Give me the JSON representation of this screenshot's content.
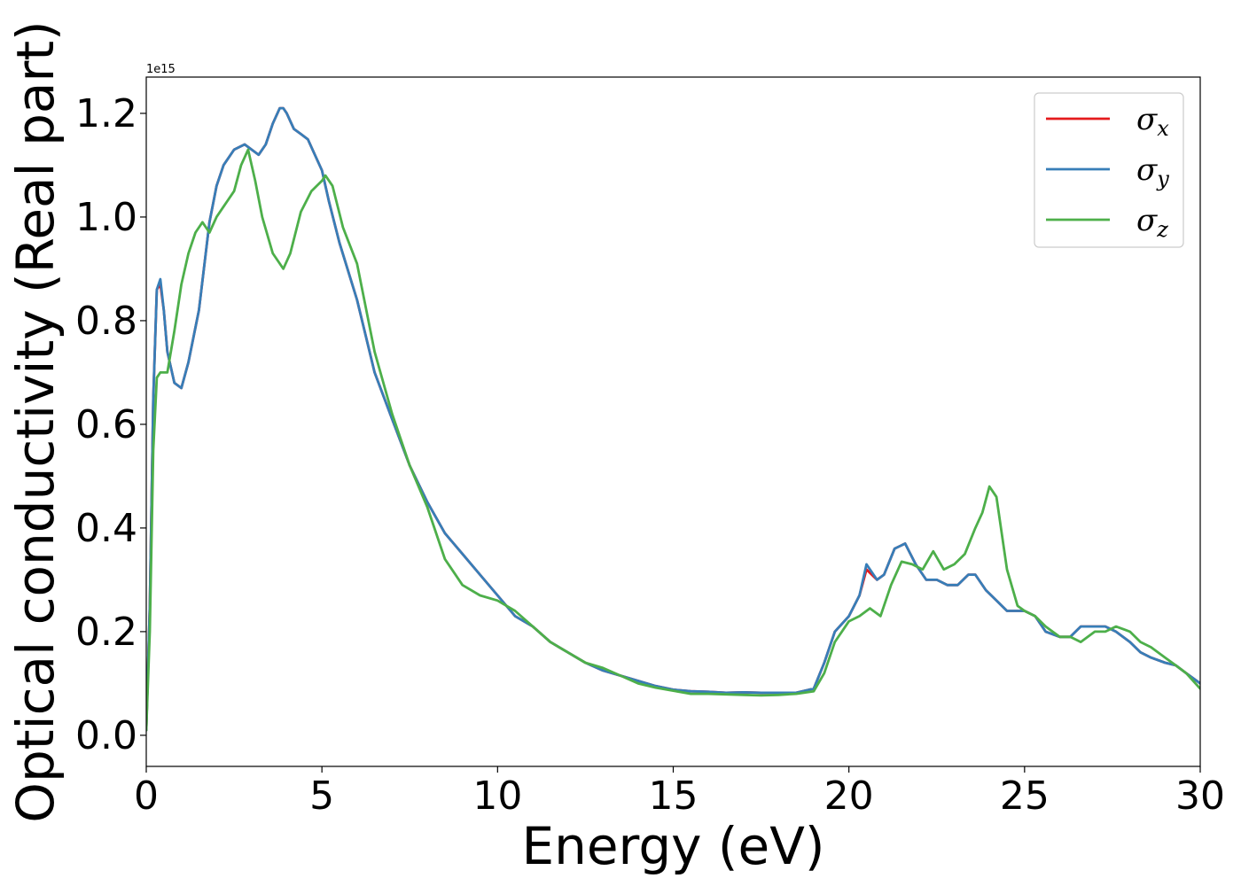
{
  "chart_data": {
    "type": "line",
    "title": "",
    "xlabel": "Energy (eV)",
    "ylabel": "Optical conductivity (Real part)",
    "y_offset_label": "1e15",
    "xlim": [
      0,
      30
    ],
    "ylim": [
      -0.06,
      1.27
    ],
    "x_ticks": [
      0,
      5,
      10,
      15,
      20,
      25,
      30
    ],
    "x_tick_labels": [
      "0",
      "5",
      "10",
      "15",
      "20",
      "25",
      "30"
    ],
    "y_ticks": [
      0.0,
      0.2,
      0.4,
      0.6,
      0.8,
      1.0,
      1.2
    ],
    "y_tick_labels": [
      "0.0",
      "0.2",
      "0.4",
      "0.6",
      "0.8",
      "1.0",
      "1.2"
    ],
    "grid": false,
    "legend_position": "top-right",
    "series": [
      {
        "name": "σx",
        "symbol": "σ",
        "subscript": "x",
        "color": "#e41a1c",
        "x": [
          0,
          0.1,
          0.2,
          0.3,
          0.4,
          0.5,
          0.6,
          0.8,
          1.0,
          1.2,
          1.5,
          1.8,
          2.0,
          2.2,
          2.5,
          2.8,
          3.0,
          3.2,
          3.4,
          3.6,
          3.8,
          3.9,
          4.0,
          4.2,
          4.4,
          4.6,
          4.8,
          5.0,
          5.2,
          5.5,
          6.0,
          6.5,
          7.0,
          7.5,
          8.0,
          8.5,
          9.0,
          9.5,
          10.0,
          10.5,
          11.0,
          11.5,
          12.0,
          12.5,
          13.0,
          13.5,
          14.0,
          14.5,
          15.0,
          15.5,
          16.0,
          16.5,
          17.0,
          17.5,
          18.0,
          18.5,
          19.0,
          19.3,
          19.6,
          20.0,
          20.3,
          20.5,
          20.8,
          21.0,
          21.3,
          21.6,
          21.9,
          22.2,
          22.5,
          22.8,
          23.1,
          23.4,
          23.6,
          23.9,
          24.2,
          24.5,
          24.8,
          25.0,
          25.3,
          25.6,
          26.0,
          26.3,
          26.6,
          27.0,
          27.3,
          27.6,
          28.0,
          28.3,
          28.6,
          29.0,
          29.3,
          29.6,
          30.0
        ],
        "values": [
          0.01,
          0.25,
          0.65,
          0.86,
          0.87,
          0.82,
          0.74,
          0.68,
          0.67,
          0.72,
          0.82,
          0.99,
          1.06,
          1.1,
          1.13,
          1.14,
          1.13,
          1.12,
          1.14,
          1.18,
          1.21,
          1.21,
          1.2,
          1.17,
          1.16,
          1.15,
          1.12,
          1.09,
          1.03,
          0.95,
          0.84,
          0.7,
          0.61,
          0.52,
          0.45,
          0.39,
          0.35,
          0.31,
          0.27,
          0.23,
          0.21,
          0.18,
          0.16,
          0.14,
          0.125,
          0.115,
          0.105,
          0.095,
          0.088,
          0.085,
          0.084,
          0.082,
          0.083,
          0.082,
          0.082,
          0.082,
          0.09,
          0.14,
          0.2,
          0.23,
          0.27,
          0.32,
          0.3,
          0.31,
          0.36,
          0.37,
          0.33,
          0.3,
          0.3,
          0.29,
          0.29,
          0.31,
          0.31,
          0.28,
          0.26,
          0.24,
          0.24,
          0.24,
          0.23,
          0.2,
          0.19,
          0.19,
          0.21,
          0.21,
          0.21,
          0.2,
          0.18,
          0.16,
          0.15,
          0.14,
          0.135,
          0.12,
          0.1
        ]
      },
      {
        "name": "σy",
        "symbol": "σ",
        "subscript": "y",
        "color": "#377eb8",
        "x": [
          0,
          0.1,
          0.2,
          0.3,
          0.4,
          0.5,
          0.6,
          0.8,
          1.0,
          1.2,
          1.5,
          1.8,
          2.0,
          2.2,
          2.5,
          2.8,
          3.0,
          3.2,
          3.4,
          3.6,
          3.8,
          3.9,
          4.0,
          4.2,
          4.4,
          4.6,
          4.8,
          5.0,
          5.2,
          5.5,
          6.0,
          6.5,
          7.0,
          7.5,
          8.0,
          8.5,
          9.0,
          9.5,
          10.0,
          10.5,
          11.0,
          11.5,
          12.0,
          12.5,
          13.0,
          13.5,
          14.0,
          14.5,
          15.0,
          15.5,
          16.0,
          16.5,
          17.0,
          17.5,
          18.0,
          18.5,
          19.0,
          19.3,
          19.6,
          20.0,
          20.3,
          20.5,
          20.8,
          21.0,
          21.3,
          21.6,
          21.9,
          22.2,
          22.5,
          22.8,
          23.1,
          23.4,
          23.6,
          23.9,
          24.2,
          24.5,
          24.8,
          25.0,
          25.3,
          25.6,
          26.0,
          26.3,
          26.6,
          27.0,
          27.3,
          27.6,
          28.0,
          28.3,
          28.6,
          29.0,
          29.3,
          29.6,
          30.0
        ],
        "values": [
          0.01,
          0.25,
          0.65,
          0.86,
          0.88,
          0.82,
          0.74,
          0.68,
          0.67,
          0.72,
          0.82,
          0.99,
          1.06,
          1.1,
          1.13,
          1.14,
          1.13,
          1.12,
          1.14,
          1.18,
          1.21,
          1.21,
          1.2,
          1.17,
          1.16,
          1.15,
          1.12,
          1.09,
          1.03,
          0.95,
          0.84,
          0.7,
          0.61,
          0.52,
          0.45,
          0.39,
          0.35,
          0.31,
          0.27,
          0.23,
          0.21,
          0.18,
          0.16,
          0.14,
          0.125,
          0.115,
          0.105,
          0.095,
          0.088,
          0.085,
          0.084,
          0.082,
          0.083,
          0.082,
          0.082,
          0.082,
          0.09,
          0.14,
          0.2,
          0.23,
          0.27,
          0.33,
          0.3,
          0.31,
          0.36,
          0.37,
          0.33,
          0.3,
          0.3,
          0.29,
          0.29,
          0.31,
          0.31,
          0.28,
          0.26,
          0.24,
          0.24,
          0.24,
          0.23,
          0.2,
          0.19,
          0.19,
          0.21,
          0.21,
          0.21,
          0.2,
          0.18,
          0.16,
          0.15,
          0.14,
          0.135,
          0.12,
          0.1
        ]
      },
      {
        "name": "σz",
        "symbol": "σ",
        "subscript": "z",
        "color": "#4daf4a",
        "x": [
          0,
          0.1,
          0.2,
          0.3,
          0.4,
          0.5,
          0.6,
          0.8,
          1.0,
          1.2,
          1.4,
          1.6,
          1.8,
          2.0,
          2.2,
          2.5,
          2.7,
          2.9,
          3.1,
          3.3,
          3.6,
          3.9,
          4.1,
          4.4,
          4.7,
          5.0,
          5.1,
          5.3,
          5.6,
          6.0,
          6.5,
          7.0,
          7.5,
          8.0,
          8.5,
          9.0,
          9.5,
          10.0,
          10.5,
          11.0,
          11.5,
          12.0,
          12.5,
          13.0,
          13.5,
          14.0,
          14.5,
          15.0,
          15.5,
          16.0,
          16.5,
          17.0,
          17.5,
          18.0,
          18.5,
          19.0,
          19.3,
          19.6,
          20.0,
          20.3,
          20.6,
          20.9,
          21.2,
          21.5,
          21.8,
          22.1,
          22.4,
          22.7,
          23.0,
          23.3,
          23.6,
          23.8,
          24.0,
          24.2,
          24.5,
          24.8,
          25.0,
          25.3,
          25.6,
          26.0,
          26.3,
          26.6,
          27.0,
          27.3,
          27.6,
          28.0,
          28.3,
          28.6,
          29.0,
          29.3,
          29.6,
          30.0
        ],
        "values": [
          0.01,
          0.2,
          0.55,
          0.69,
          0.7,
          0.7,
          0.7,
          0.78,
          0.87,
          0.93,
          0.97,
          0.99,
          0.97,
          1.0,
          1.02,
          1.05,
          1.1,
          1.13,
          1.07,
          1.0,
          0.93,
          0.9,
          0.93,
          1.01,
          1.05,
          1.07,
          1.08,
          1.06,
          0.98,
          0.91,
          0.74,
          0.62,
          0.52,
          0.44,
          0.34,
          0.29,
          0.27,
          0.26,
          0.24,
          0.21,
          0.18,
          0.16,
          0.14,
          0.13,
          0.115,
          0.1,
          0.092,
          0.086,
          0.08,
          0.08,
          0.079,
          0.078,
          0.077,
          0.078,
          0.08,
          0.085,
          0.12,
          0.18,
          0.22,
          0.23,
          0.245,
          0.23,
          0.29,
          0.335,
          0.33,
          0.32,
          0.355,
          0.32,
          0.33,
          0.35,
          0.4,
          0.43,
          0.48,
          0.46,
          0.32,
          0.25,
          0.24,
          0.23,
          0.21,
          0.19,
          0.19,
          0.18,
          0.2,
          0.2,
          0.21,
          0.2,
          0.18,
          0.17,
          0.15,
          0.135,
          0.12,
          0.09
        ]
      }
    ]
  }
}
